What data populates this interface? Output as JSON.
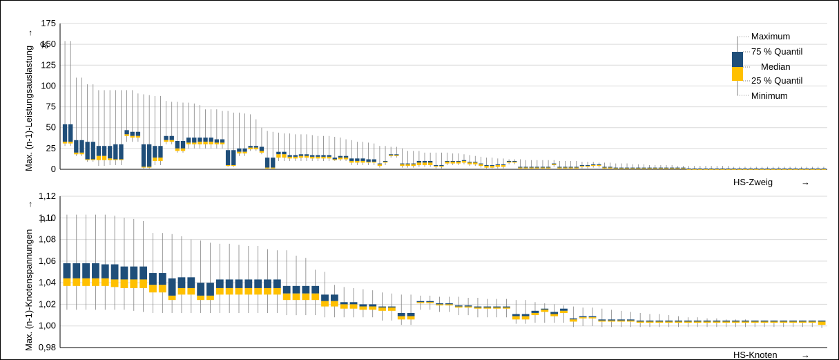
{
  "colors": {
    "upper_box": "#1f4e79",
    "lower_box": "#ffc000",
    "whisker": "#808080",
    "grid": "#d9d9d9",
    "axis": "#000000"
  },
  "legend": {
    "items": [
      "Maximum",
      "75 % Quantil",
      "Median",
      "25 % Quantil",
      "Minimum"
    ]
  },
  "chart_data": [
    {
      "type": "boxplot",
      "ylabel": "Max. (n-1)-Leistungsauslastung",
      "unit": "%",
      "xlabel": "HS-Zweig",
      "ylim": [
        0,
        175
      ],
      "yticks": [
        "0",
        "25",
        "50",
        "75",
        "100",
        "125",
        "150",
        "175"
      ],
      "grid": true,
      "legend_position": "top-right",
      "max": [
        154,
        154,
        110,
        110,
        102,
        102,
        95,
        95,
        95,
        95,
        95,
        95,
        95,
        91,
        90,
        89,
        88,
        88,
        82,
        81,
        81,
        80,
        80,
        79,
        77,
        72,
        72,
        72,
        70,
        70,
        68,
        68,
        67,
        66,
        60,
        50,
        46,
        45,
        44,
        43,
        43,
        42,
        42,
        42,
        41,
        40,
        40,
        40,
        39,
        38,
        36,
        35,
        33,
        33,
        32,
        31,
        28,
        28,
        27,
        27,
        25,
        22,
        22,
        22,
        20,
        20,
        20,
        20,
        20,
        19,
        19,
        18,
        17,
        16,
        15,
        14,
        14,
        13,
        13,
        12,
        12,
        12,
        11,
        11,
        11,
        11,
        11,
        11,
        10,
        10,
        10,
        10,
        9,
        9,
        9,
        8,
        8,
        8,
        7,
        7,
        7,
        6,
        6,
        6,
        5,
        5,
        5,
        5,
        5,
        4,
        4,
        4,
        4,
        4,
        4,
        4,
        4,
        4,
        4,
        3,
        3,
        3,
        3,
        3,
        3,
        3,
        3,
        3,
        3,
        3,
        3,
        3,
        3,
        3,
        3,
        3
      ],
      "q3": [
        54,
        54,
        35,
        35,
        33,
        33,
        28,
        28,
        28,
        30,
        30,
        47,
        45,
        45,
        30,
        30,
        28,
        28,
        40,
        40,
        34,
        34,
        38,
        38,
        38,
        38,
        38,
        36,
        36,
        23,
        23,
        25,
        25,
        28,
        28,
        27,
        14,
        14,
        21,
        21,
        17,
        17,
        18,
        18,
        17,
        17,
        17,
        17,
        14,
        16,
        16,
        13,
        13,
        13,
        12,
        12,
        7,
        10,
        18,
        18,
        7,
        7,
        7,
        10,
        10,
        10,
        5,
        5,
        10,
        10,
        10,
        11,
        9,
        9,
        7,
        5,
        5,
        6,
        6,
        10,
        10,
        3,
        3,
        3,
        3,
        3,
        3,
        7,
        3,
        3,
        3,
        3,
        5,
        5,
        6,
        6,
        3,
        3,
        2,
        2,
        2,
        2,
        2,
        2,
        2,
        2,
        2,
        2,
        2,
        2,
        2,
        1,
        1,
        1,
        1,
        1,
        1,
        1,
        1,
        1,
        1,
        1,
        1,
        1,
        1,
        1,
        1,
        1,
        1,
        1,
        1,
        1,
        1,
        1,
        1,
        1,
        1
      ],
      "median": [
        33,
        33,
        20,
        20,
        12,
        12,
        16,
        16,
        13,
        12,
        12,
        42,
        40,
        40,
        3,
        3,
        14,
        14,
        35,
        35,
        25,
        25,
        32,
        32,
        33,
        33,
        33,
        32,
        32,
        5,
        5,
        21,
        21,
        26,
        26,
        22,
        2,
        2,
        18,
        18,
        15,
        15,
        16,
        16,
        15,
        15,
        15,
        15,
        12,
        14,
        14,
        10,
        10,
        10,
        9,
        9,
        6,
        9,
        17,
        17,
        6,
        6,
        6,
        8,
        8,
        8,
        4,
        4,
        9,
        9,
        9,
        10,
        8,
        8,
        6,
        4,
        4,
        5,
        5,
        9,
        9,
        2,
        2,
        2,
        2,
        2,
        2,
        6,
        2,
        2,
        2,
        2,
        4,
        4,
        5,
        5,
        2,
        2,
        1,
        1,
        1,
        1,
        1,
        1,
        1,
        1,
        1,
        1,
        1,
        1,
        1,
        0,
        0,
        0,
        0,
        0,
        0,
        0,
        0,
        0,
        0,
        0,
        0,
        0,
        0,
        0,
        0,
        0,
        0,
        0,
        0,
        0,
        0,
        0,
        0,
        0,
        0
      ],
      "q1": [
        31,
        31,
        18,
        18,
        11,
        11,
        11,
        11,
        11,
        11,
        11,
        40,
        38,
        38,
        2,
        2,
        10,
        10,
        33,
        33,
        22,
        22,
        30,
        30,
        30,
        30,
        30,
        30,
        30,
        4,
        4,
        19,
        19,
        24,
        24,
        20,
        1,
        1,
        14,
        14,
        13,
        13,
        14,
        14,
        13,
        13,
        13,
        13,
        11,
        12,
        12,
        8,
        8,
        8,
        8,
        8,
        4,
        8,
        16,
        16,
        4,
        4,
        4,
        5,
        5,
        5,
        3,
        3,
        7,
        7,
        7,
        8,
        6,
        6,
        4,
        2,
        2,
        3,
        3,
        8,
        8,
        1,
        1,
        1,
        1,
        1,
        1,
        5,
        1,
        1,
        1,
        1,
        3,
        3,
        4,
        4,
        1,
        1,
        0,
        0,
        0,
        0,
        0,
        0,
        0,
        0,
        0,
        0,
        0,
        0,
        0,
        0,
        0,
        0,
        0,
        0,
        0,
        0,
        0,
        0,
        0,
        0,
        0,
        0,
        0,
        0,
        0,
        0,
        0,
        0,
        0,
        0,
        0,
        0,
        0,
        0,
        0
      ],
      "min": [
        28,
        28,
        16,
        16,
        9,
        9,
        4,
        4,
        5,
        5,
        5,
        33,
        33,
        33,
        0,
        0,
        5,
        5,
        30,
        30,
        20,
        20,
        25,
        25,
        25,
        25,
        25,
        25,
        25,
        3,
        3,
        16,
        16,
        22,
        22,
        18,
        0,
        0,
        10,
        10,
        10,
        10,
        10,
        10,
        10,
        10,
        10,
        10,
        10,
        10,
        10,
        5,
        5,
        5,
        5,
        5,
        2,
        5,
        14,
        14,
        2,
        2,
        2,
        3,
        3,
        3,
        1,
        1,
        5,
        5,
        5,
        6,
        4,
        4,
        2,
        1,
        1,
        1,
        1,
        6,
        6,
        0,
        0,
        0,
        0,
        0,
        0,
        3,
        0,
        0,
        0,
        0,
        1,
        1,
        2,
        2,
        0,
        0,
        0,
        0,
        0,
        0,
        0,
        0,
        0,
        0,
        0,
        0,
        0,
        0,
        0,
        0,
        0,
        0,
        0,
        0,
        0,
        0,
        0,
        0,
        0,
        0,
        0,
        0,
        0,
        0,
        0,
        0,
        0,
        0,
        0,
        0,
        0,
        0,
        0,
        0,
        0
      ]
    },
    {
      "type": "boxplot",
      "ylabel": "Max. (n-1)-Knotenspannungen",
      "unit": "p.u.",
      "xlabel": "HS-Knoten",
      "ylim": [
        0.98,
        1.12
      ],
      "yticks": [
        "0,98",
        "1,00",
        "1,02",
        "1,04",
        "1,06",
        "1,08",
        "1,10",
        "1,12"
      ],
      "grid": true,
      "max": [
        1.103,
        1.103,
        1.103,
        1.103,
        1.103,
        1.102,
        1.1,
        1.099,
        1.097,
        1.086,
        1.086,
        1.085,
        1.083,
        1.08,
        1.079,
        1.077,
        1.076,
        1.076,
        1.075,
        1.074,
        1.074,
        1.071,
        1.07,
        1.07,
        1.065,
        1.063,
        1.052,
        1.05,
        1.038,
        1.036,
        1.035,
        1.034,
        1.033,
        1.031,
        1.03,
        1.029,
        1.029,
        1.028,
        1.028,
        1.027,
        1.027,
        1.027,
        1.026,
        1.026,
        1.025,
        1.025,
        1.025,
        1.024,
        1.024,
        1.022,
        1.021,
        1.02,
        1.019,
        1.018,
        1.017,
        1.017,
        1.016,
        1.015,
        1.014,
        1.013,
        1.012,
        1.011,
        1.011,
        1.01,
        1.009,
        1.008,
        1.008,
        1.007,
        1.007,
        1.006,
        1.006,
        1.006,
        1.005,
        1.005,
        1.005,
        1.005,
        1.005,
        1.005,
        1.005,
        1.005
      ],
      "q3": [
        1.058,
        1.058,
        1.058,
        1.058,
        1.057,
        1.057,
        1.055,
        1.055,
        1.055,
        1.049,
        1.049,
        1.044,
        1.045,
        1.045,
        1.04,
        1.04,
        1.043,
        1.043,
        1.043,
        1.043,
        1.043,
        1.043,
        1.043,
        1.037,
        1.037,
        1.037,
        1.037,
        1.029,
        1.029,
        1.022,
        1.022,
        1.02,
        1.02,
        1.018,
        1.018,
        1.012,
        1.012,
        1.023,
        1.023,
        1.021,
        1.021,
        1.019,
        1.019,
        1.018,
        1.018,
        1.018,
        1.018,
        1.011,
        1.011,
        1.014,
        1.016,
        1.013,
        1.016,
        1.007,
        1.009,
        1.009,
        1.006,
        1.006,
        1.006,
        1.006,
        1.005,
        1.005,
        1.005,
        1.005,
        1.005,
        1.005,
        1.005,
        1.005,
        1.005,
        1.005,
        1.005,
        1.005,
        1.005,
        1.005,
        1.005,
        1.005,
        1.005,
        1.005,
        1.005,
        1.005
      ],
      "median": [
        1.044,
        1.044,
        1.044,
        1.044,
        1.044,
        1.043,
        1.043,
        1.043,
        1.043,
        1.038,
        1.038,
        1.028,
        1.035,
        1.035,
        1.028,
        1.028,
        1.035,
        1.035,
        1.035,
        1.035,
        1.035,
        1.035,
        1.035,
        1.03,
        1.03,
        1.03,
        1.03,
        1.023,
        1.023,
        1.02,
        1.02,
        1.018,
        1.018,
        1.017,
        1.017,
        1.009,
        1.009,
        1.022,
        1.022,
        1.02,
        1.02,
        1.018,
        1.018,
        1.017,
        1.017,
        1.017,
        1.017,
        1.009,
        1.009,
        1.012,
        1.015,
        1.011,
        1.014,
        1.006,
        1.008,
        1.008,
        1.005,
        1.005,
        1.005,
        1.005,
        1.004,
        1.004,
        1.004,
        1.004,
        1.004,
        1.004,
        1.004,
        1.004,
        1.004,
        1.004,
        1.004,
        1.004,
        1.004,
        1.004,
        1.004,
        1.004,
        1.004,
        1.004,
        1.004,
        1.004
      ],
      "q1": [
        1.037,
        1.037,
        1.037,
        1.037,
        1.037,
        1.036,
        1.035,
        1.035,
        1.035,
        1.031,
        1.031,
        1.024,
        1.029,
        1.029,
        1.024,
        1.024,
        1.029,
        1.029,
        1.029,
        1.029,
        1.029,
        1.029,
        1.029,
        1.024,
        1.024,
        1.024,
        1.024,
        1.018,
        1.018,
        1.016,
        1.016,
        1.015,
        1.015,
        1.014,
        1.014,
        1.006,
        1.006,
        1.021,
        1.021,
        1.019,
        1.019,
        1.017,
        1.017,
        1.016,
        1.016,
        1.016,
        1.016,
        1.006,
        1.006,
        1.01,
        1.013,
        1.009,
        1.012,
        1.004,
        1.007,
        1.007,
        1.004,
        1.004,
        1.004,
        1.004,
        1.003,
        1.003,
        1.003,
        1.003,
        1.003,
        1.003,
        1.003,
        1.003,
        1.003,
        1.003,
        1.003,
        1.003,
        1.003,
        1.003,
        1.003,
        1.003,
        1.003,
        1.003,
        1.003,
        1.001
      ],
      "min": [
        1.015,
        1.015,
        1.015,
        1.015,
        1.015,
        1.015,
        1.015,
        1.014,
        1.013,
        1.012,
        1.012,
        1.012,
        1.012,
        1.012,
        1.012,
        1.012,
        1.012,
        1.012,
        1.012,
        1.012,
        1.012,
        1.012,
        1.012,
        1.01,
        1.01,
        1.01,
        1.01,
        1.008,
        1.008,
        1.008,
        1.008,
        1.008,
        1.008,
        1.005,
        1.005,
        1.001,
        1.001,
        1.015,
        1.015,
        1.013,
        1.013,
        1.01,
        1.01,
        1.008,
        1.008,
        1.008,
        1.008,
        1.002,
        1.002,
        1.003,
        1.003,
        1.003,
        1.003,
        0.999,
        1.0,
        1.0,
        0.999,
        0.999,
        0.999,
        0.999,
        0.999,
        0.999,
        0.999,
        0.999,
        0.999,
        0.999,
        0.999,
        0.999,
        0.999,
        0.999,
        0.999,
        0.999,
        0.999,
        0.999,
        0.999,
        0.999,
        0.999,
        0.999,
        0.999,
        0.998
      ]
    }
  ]
}
